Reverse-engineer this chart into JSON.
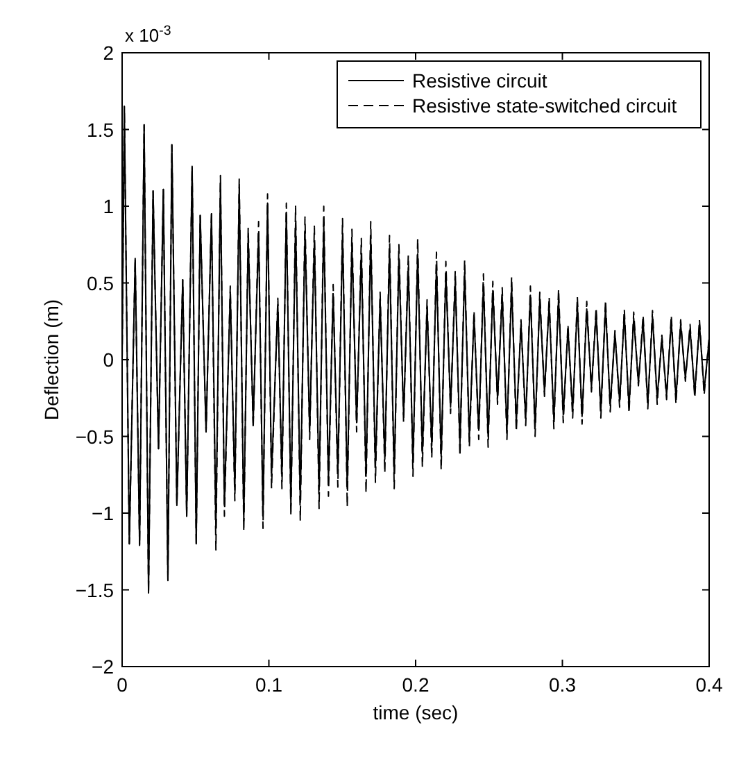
{
  "chart_data": {
    "type": "line",
    "xlabel": "time (sec)",
    "ylabel": "Deflection (m)",
    "annotations": [
      "x 10$^{-3}$"
    ],
    "xlim": [
      0,
      0.4
    ],
    "xticks": [
      0,
      0.1,
      0.2,
      0.3,
      0.4
    ],
    "ylim": [
      -2,
      2
    ],
    "yticks": [
      -2,
      -1.5,
      -1,
      -0.5,
      0,
      0.5,
      1,
      1.5,
      2
    ],
    "legend": "top right",
    "x": [
      0,
      0.0015,
      0.0049,
      0.0089,
      0.0119,
      0.015,
      0.018,
      0.0211,
      0.0248,
      0.0281,
      0.0312,
      0.0339,
      0.0373,
      0.0413,
      0.044,
      0.0477,
      0.0505,
      0.0532,
      0.0572,
      0.0609,
      0.0639,
      0.067,
      0.0697,
      0.0737,
      0.0768,
      0.0798,
      0.0829,
      0.0859,
      0.0893,
      0.093,
      0.096,
      0.0991,
      0.1018,
      0.1061,
      0.1089,
      0.1119,
      0.115,
      0.1182,
      0.1214,
      0.1246,
      0.1278,
      0.131,
      0.1342,
      0.1374,
      0.1406,
      0.1438,
      0.147,
      0.1502,
      0.1534,
      0.1566,
      0.1598,
      0.163,
      0.1662,
      0.1694,
      0.1726,
      0.1758,
      0.179,
      0.1822,
      0.1854,
      0.1886,
      0.1918,
      0.195,
      0.1982,
      0.2014,
      0.2046,
      0.2078,
      0.211,
      0.2142,
      0.2174,
      0.2206,
      0.2238,
      0.227,
      0.2302,
      0.2334,
      0.2366,
      0.2398,
      0.243,
      0.2462,
      0.2494,
      0.2526,
      0.2558,
      0.259,
      0.2622,
      0.2654,
      0.2686,
      0.2718,
      0.275,
      0.2782,
      0.2814,
      0.2846,
      0.2878,
      0.291,
      0.2942,
      0.2974,
      0.3006,
      0.3038,
      0.307,
      0.3102,
      0.3134,
      0.3166,
      0.3198,
      0.323,
      0.3262,
      0.3294,
      0.3326,
      0.3358,
      0.339,
      0.3422,
      0.3454,
      0.3486,
      0.3518,
      0.355,
      0.3582,
      0.3614,
      0.3646,
      0.3678,
      0.371,
      0.3742,
      0.3774,
      0.3806,
      0.3838,
      0.387,
      0.3902,
      0.3934,
      0.3966,
      0.3998
    ],
    "series": [
      {
        "name": "Resistive circuit",
        "color": "#000000",
        "line_style": "solid",
        "values": [
          0,
          1.65,
          -1.2,
          0.66,
          -1.21,
          1.53,
          -1.52,
          1.1,
          -0.58,
          1.11,
          -1.44,
          1.4,
          -0.95,
          0.52,
          -1.02,
          1.26,
          -1.2,
          0.94,
          -0.47,
          0.95,
          -1.1,
          1.15,
          -0.95,
          0.44,
          -0.85,
          1.12,
          -1.05,
          0.8,
          -0.41,
          0.82,
          -1.02,
          1.02,
          -0.76,
          0.36,
          -0.76,
          0.96,
          -0.95,
          0.89,
          -0.93,
          0.83,
          -0.46,
          0.77,
          -0.85,
          0.88,
          -0.78,
          0.43,
          -0.73,
          0.81,
          -0.84,
          0.75,
          -0.41,
          0.69,
          -0.76,
          0.79,
          -0.7,
          0.39,
          -0.65,
          0.71,
          -0.74,
          0.66,
          -0.36,
          0.6,
          -0.67,
          0.69,
          -0.61,
          0.34,
          -0.56,
          0.61,
          -0.63,
          0.56,
          -0.31,
          0.51,
          -0.55,
          0.57,
          -0.5,
          0.28,
          -0.46,
          0.49,
          -0.5,
          0.45,
          -0.25,
          0.41,
          -0.46,
          0.47,
          -0.41,
          0.23,
          -0.38,
          0.42,
          -0.44,
          0.39,
          -0.21,
          0.36,
          -0.39,
          0.4,
          -0.36,
          0.2,
          -0.33,
          0.36,
          -0.37,
          0.33,
          -0.18,
          0.3,
          -0.33,
          0.34,
          -0.3,
          0.17,
          -0.27,
          0.29,
          -0.31,
          0.27,
          -0.15,
          0.25,
          -0.28,
          0.28,
          -0.25,
          0.14,
          -0.23,
          0.25,
          -0.25,
          0.23,
          -0.12,
          0.2,
          -0.22,
          0.23,
          -0.2,
          0.11
        ]
      },
      {
        "name": "Resistive state-switched circuit",
        "color": "#000000",
        "line_style": "dashed",
        "values": [
          0,
          1.65,
          -1.2,
          0.66,
          -1.21,
          1.53,
          -1.52,
          1.1,
          -0.58,
          1.11,
          -1.44,
          1.4,
          -0.95,
          0.52,
          -1.02,
          1.26,
          -1.2,
          0.94,
          -0.47,
          0.95,
          -1.24,
          1.2,
          -1.02,
          0.48,
          -0.92,
          1.18,
          -1.12,
          0.86,
          -0.45,
          0.9,
          -1.1,
          1.08,
          -0.84,
          0.4,
          -0.84,
          1.02,
          -1.02,
          1.0,
          -1.05,
          0.93,
          -0.52,
          0.87,
          -0.97,
          1.0,
          -0.89,
          0.49,
          -0.83,
          0.92,
          -0.96,
          0.85,
          -0.47,
          0.79,
          -0.87,
          0.9,
          -0.8,
          0.44,
          -0.74,
          0.81,
          -0.84,
          0.75,
          -0.41,
          0.68,
          -0.76,
          0.79,
          -0.7,
          0.39,
          -0.64,
          0.7,
          -0.72,
          0.64,
          -0.35,
          0.58,
          -0.63,
          0.65,
          -0.57,
          0.32,
          -0.52,
          0.56,
          -0.57,
          0.51,
          -0.29,
          0.47,
          -0.52,
          0.54,
          -0.47,
          0.26,
          -0.43,
          0.48,
          -0.5,
          0.44,
          -0.24,
          0.41,
          -0.45,
          0.46,
          -0.41,
          0.23,
          -0.38,
          0.41,
          -0.42,
          0.38,
          -0.21,
          0.34,
          -0.38,
          0.39,
          -0.34,
          0.19,
          -0.31,
          0.33,
          -0.35,
          0.31,
          -0.17,
          0.29,
          -0.32,
          0.32,
          -0.29,
          0.16,
          -0.26,
          0.29,
          -0.29,
          0.26,
          -0.14,
          0.23,
          -0.25,
          0.26,
          -0.23,
          0.13
        ]
      }
    ]
  }
}
